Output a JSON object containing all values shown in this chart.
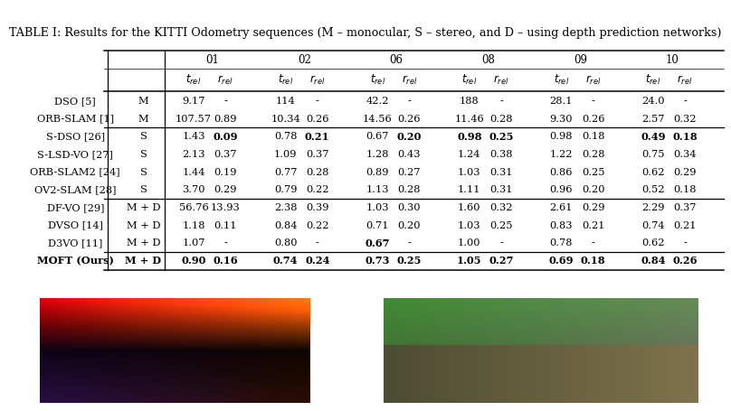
{
  "title": "TABLE I: Results for the KITTI Odometry sequences (M – monocular, S – stereo, and D – using depth prediction networks)",
  "sequences": [
    "01",
    "02",
    "06",
    "08",
    "09",
    "10"
  ],
  "rows": [
    {
      "name": "DSO [5]",
      "type": "M",
      "data": [
        [
          "9.17",
          "-"
        ],
        [
          "114",
          "-"
        ],
        [
          "42.2",
          "-"
        ],
        [
          "188",
          "-"
        ],
        [
          "28.1",
          "-"
        ],
        [
          "24.0",
          "-"
        ]
      ],
      "bold": [
        [
          false,
          false
        ],
        [
          false,
          false
        ],
        [
          false,
          false
        ],
        [
          false,
          false
        ],
        [
          false,
          false
        ],
        [
          false,
          false
        ]
      ],
      "is_ours": false
    },
    {
      "name": "ORB-SLAM [1]",
      "type": "M",
      "data": [
        [
          "107.57",
          "0.89"
        ],
        [
          "10.34",
          "0.26"
        ],
        [
          "14.56",
          "0.26"
        ],
        [
          "11.46",
          "0.28"
        ],
        [
          "9.30",
          "0.26"
        ],
        [
          "2.57",
          "0.32"
        ]
      ],
      "bold": [
        [
          false,
          false
        ],
        [
          false,
          false
        ],
        [
          false,
          false
        ],
        [
          false,
          false
        ],
        [
          false,
          false
        ],
        [
          false,
          false
        ]
      ],
      "is_ours": false
    },
    {
      "name": "S-DSO [26]",
      "type": "S",
      "data": [
        [
          "1.43",
          "0.09"
        ],
        [
          "0.78",
          "0.21"
        ],
        [
          "0.67",
          "0.20"
        ],
        [
          "0.98",
          "0.25"
        ],
        [
          "0.98",
          "0.18"
        ],
        [
          "0.49",
          "0.18"
        ]
      ],
      "bold": [
        [
          false,
          true
        ],
        [
          false,
          true
        ],
        [
          false,
          true
        ],
        [
          true,
          true
        ],
        [
          false,
          false
        ],
        [
          true,
          true
        ]
      ],
      "is_ours": false
    },
    {
      "name": "S-LSD-VO [27]",
      "type": "S",
      "data": [
        [
          "2.13",
          "0.37"
        ],
        [
          "1.09",
          "0.37"
        ],
        [
          "1.28",
          "0.43"
        ],
        [
          "1.24",
          "0.38"
        ],
        [
          "1.22",
          "0.28"
        ],
        [
          "0.75",
          "0.34"
        ]
      ],
      "bold": [
        [
          false,
          false
        ],
        [
          false,
          false
        ],
        [
          false,
          false
        ],
        [
          false,
          false
        ],
        [
          false,
          false
        ],
        [
          false,
          false
        ]
      ],
      "is_ours": false
    },
    {
      "name": "ORB-SLAM2 [24]",
      "type": "S",
      "data": [
        [
          "1.44",
          "0.19"
        ],
        [
          "0.77",
          "0.28"
        ],
        [
          "0.89",
          "0.27"
        ],
        [
          "1.03",
          "0.31"
        ],
        [
          "0.86",
          "0.25"
        ],
        [
          "0.62",
          "0.29"
        ]
      ],
      "bold": [
        [
          false,
          false
        ],
        [
          false,
          false
        ],
        [
          false,
          false
        ],
        [
          false,
          false
        ],
        [
          false,
          false
        ],
        [
          false,
          false
        ]
      ],
      "is_ours": false
    },
    {
      "name": "OV2-SLAM [28]",
      "type": "S",
      "data": [
        [
          "3.70",
          "0.29"
        ],
        [
          "0.79",
          "0.22"
        ],
        [
          "1.13",
          "0.28"
        ],
        [
          "1.11",
          "0.31"
        ],
        [
          "0.96",
          "0.20"
        ],
        [
          "0.52",
          "0.18"
        ]
      ],
      "bold": [
        [
          false,
          false
        ],
        [
          false,
          false
        ],
        [
          false,
          false
        ],
        [
          false,
          false
        ],
        [
          false,
          false
        ],
        [
          false,
          false
        ]
      ],
      "is_ours": false
    },
    {
      "name": "DF-VO [29]",
      "type": "M + D",
      "data": [
        [
          "56.76",
          "13.93"
        ],
        [
          "2.38",
          "0.39"
        ],
        [
          "1.03",
          "0.30"
        ],
        [
          "1.60",
          "0.32"
        ],
        [
          "2.61",
          "0.29"
        ],
        [
          "2.29",
          "0.37"
        ]
      ],
      "bold": [
        [
          false,
          false
        ],
        [
          false,
          false
        ],
        [
          false,
          false
        ],
        [
          false,
          false
        ],
        [
          false,
          false
        ],
        [
          false,
          false
        ]
      ],
      "is_ours": false
    },
    {
      "name": "DVSO [14]",
      "type": "M + D",
      "data": [
        [
          "1.18",
          "0.11"
        ],
        [
          "0.84",
          "0.22"
        ],
        [
          "0.71",
          "0.20"
        ],
        [
          "1.03",
          "0.25"
        ],
        [
          "0.83",
          "0.21"
        ],
        [
          "0.74",
          "0.21"
        ]
      ],
      "bold": [
        [
          false,
          false
        ],
        [
          false,
          false
        ],
        [
          false,
          false
        ],
        [
          false,
          false
        ],
        [
          false,
          false
        ],
        [
          false,
          false
        ]
      ],
      "is_ours": false
    },
    {
      "name": "D3VO [11]",
      "type": "M + D",
      "data": [
        [
          "1.07",
          "-"
        ],
        [
          "0.80",
          "-"
        ],
        [
          "0.67",
          "-"
        ],
        [
          "1.00",
          "-"
        ],
        [
          "0.78",
          "-"
        ],
        [
          "0.62",
          "-"
        ]
      ],
      "bold": [
        [
          false,
          false
        ],
        [
          false,
          false
        ],
        [
          true,
          false
        ],
        [
          false,
          false
        ],
        [
          false,
          false
        ],
        [
          false,
          false
        ]
      ],
      "is_ours": false
    },
    {
      "name": "MOFT (Ours)",
      "type": "M + D",
      "data": [
        [
          "0.90",
          "0.16"
        ],
        [
          "0.74",
          "0.24"
        ],
        [
          "0.73",
          "0.25"
        ],
        [
          "1.05",
          "0.27"
        ],
        [
          "0.69",
          "0.18"
        ],
        [
          "0.84",
          "0.26"
        ]
      ],
      "bold": [
        [
          true,
          false
        ],
        [
          true,
          false
        ],
        [
          false,
          false
        ],
        [
          false,
          false
        ],
        [
          true,
          true
        ],
        [
          false,
          false
        ]
      ],
      "is_ours": true
    }
  ],
  "separator_after": [
    1,
    5,
    8
  ],
  "bg_color": "#ffffff",
  "title_fontsize": 9.2,
  "cell_fontsize": 8.2,
  "header_fontsize": 8.5
}
